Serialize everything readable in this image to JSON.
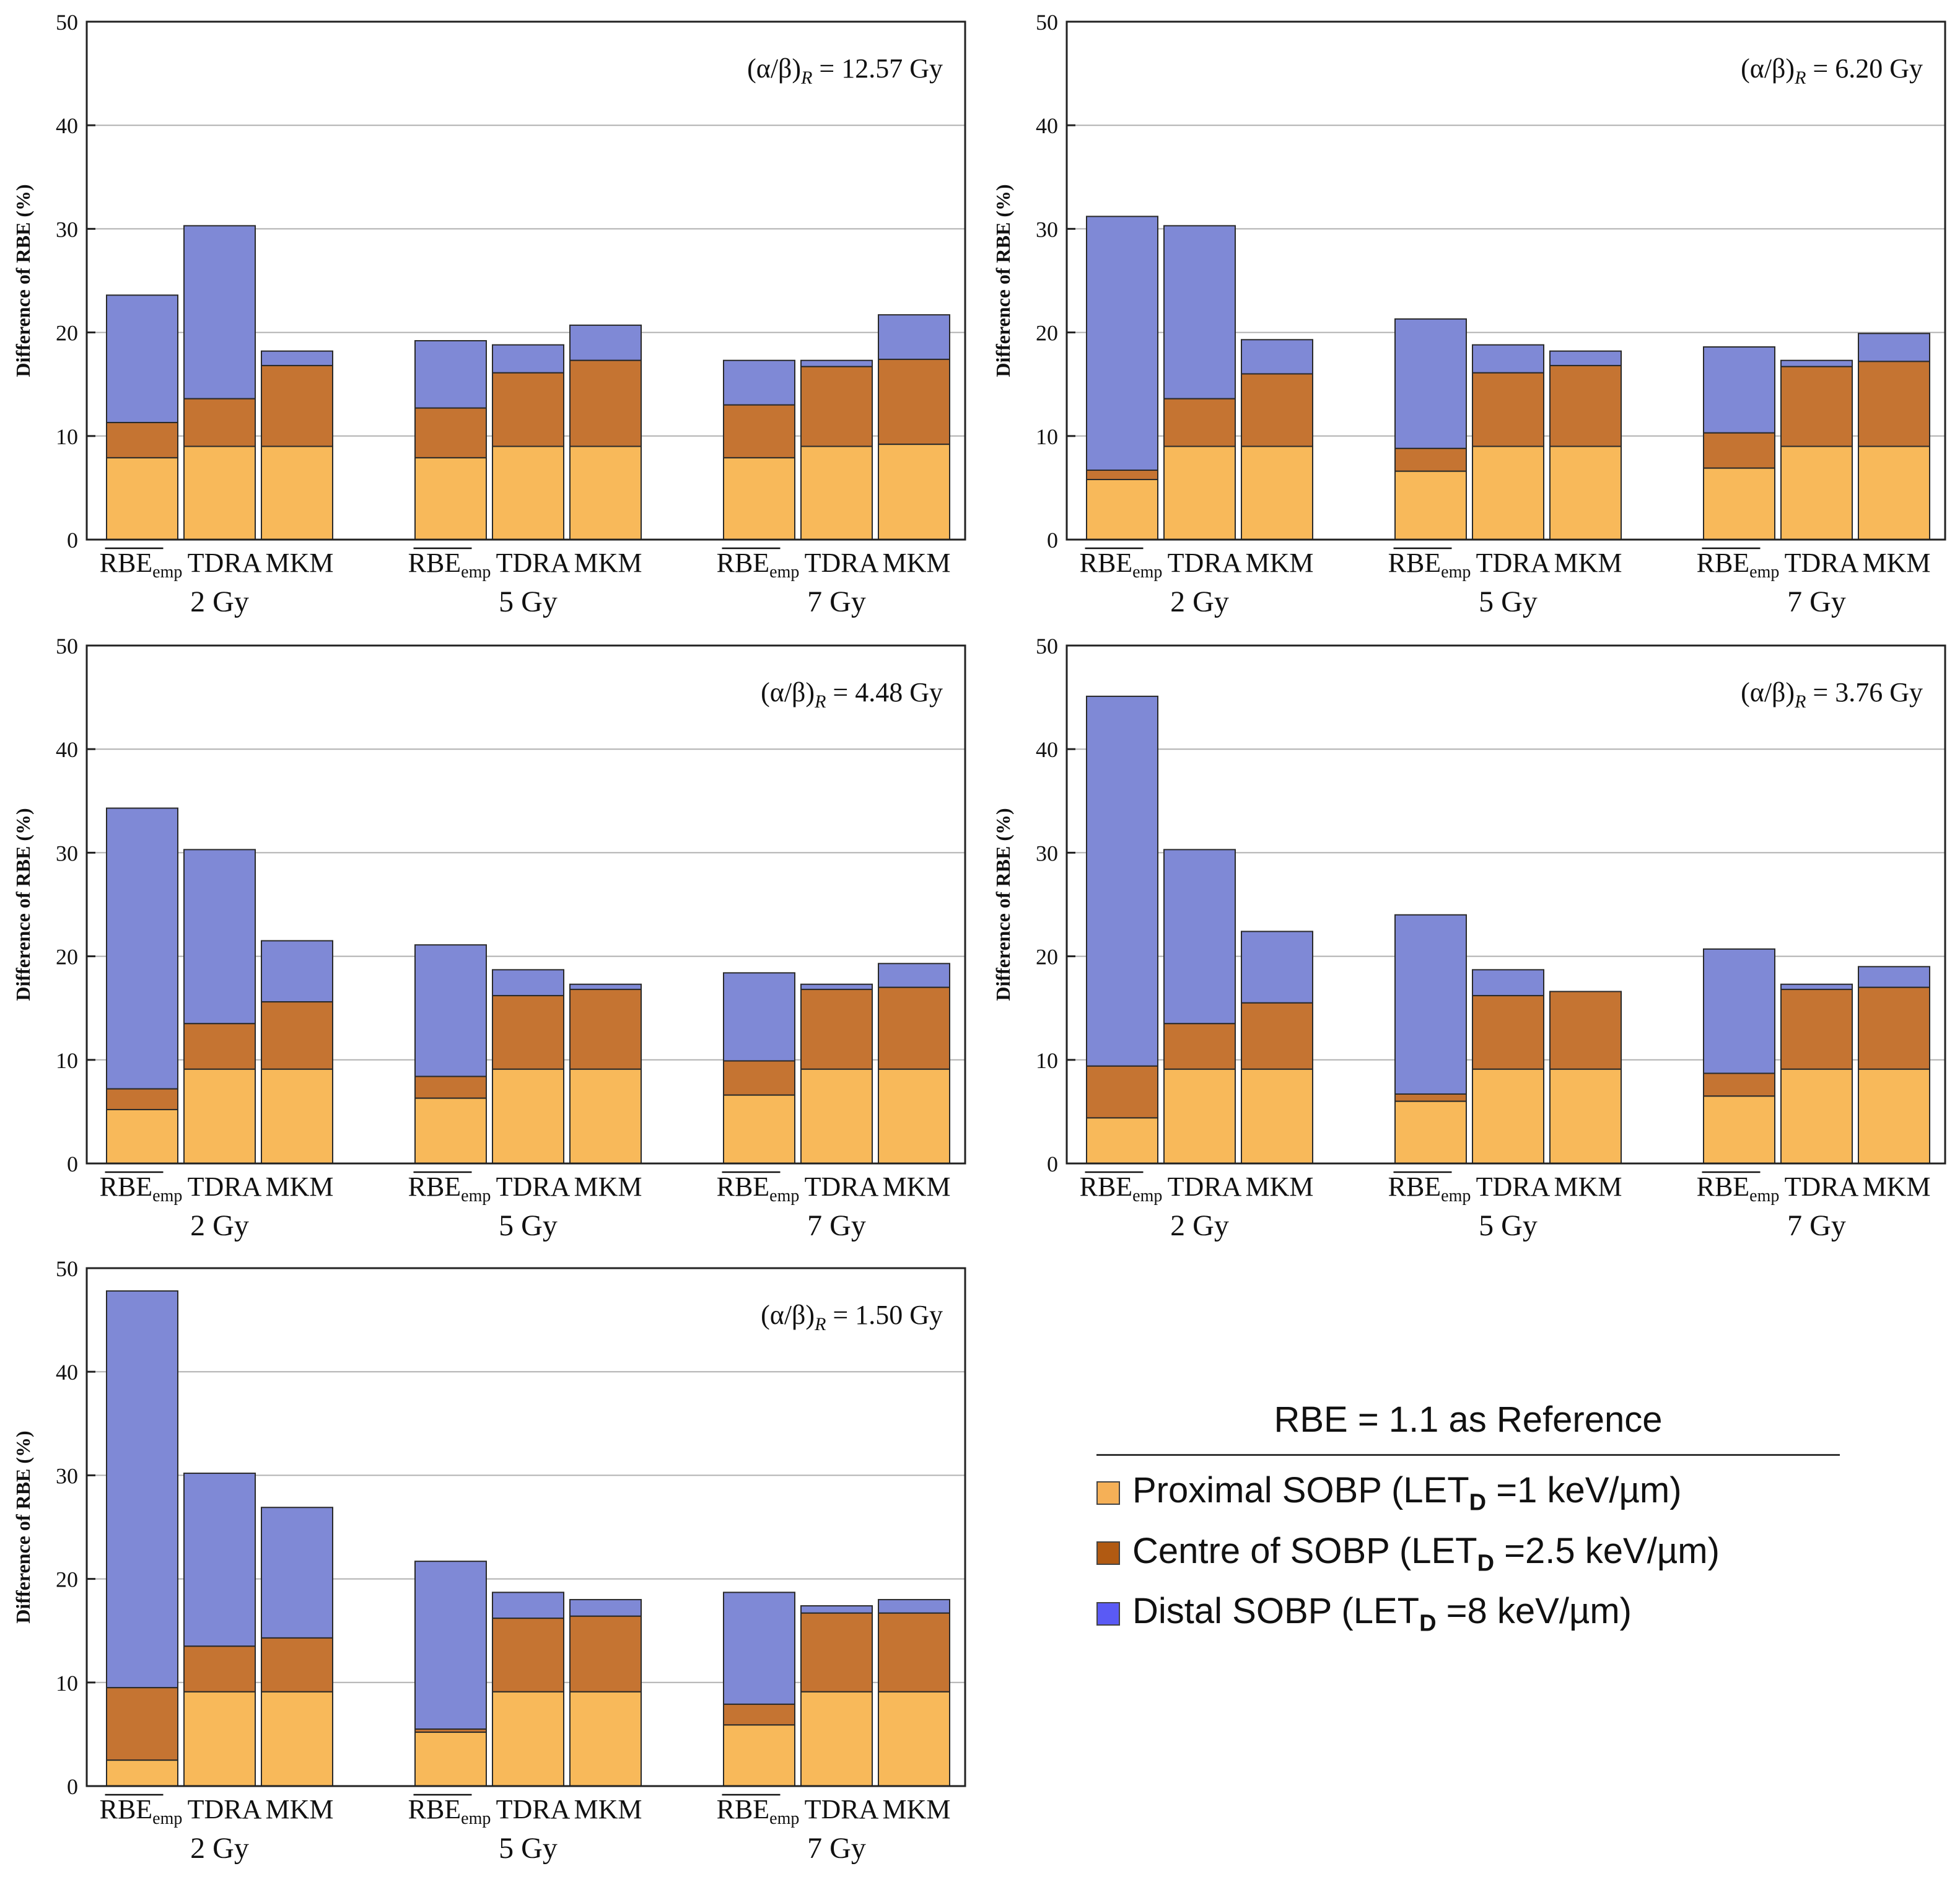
{
  "chart_data": {
    "type": "bar",
    "stacked": true,
    "ylabel": "Difference of RBE (%)",
    "ylim": [
      0,
      50
    ],
    "yticks": [
      0,
      10,
      20,
      30,
      40,
      50
    ],
    "grid": true,
    "group_labels": [
      "2 Gy",
      "5 Gy",
      "7 Gy"
    ],
    "bar_labels": [
      {
        "main": "RBE",
        "sub": "emp",
        "overline": true
      },
      {
        "main": "TDRA",
        "sub": "",
        "overline": false
      },
      {
        "main": "MKM",
        "sub": "",
        "overline": false
      }
    ],
    "series_names": [
      "Proximal SOBP (LET_D =1 keV/µm)",
      "Centre of SOBP (LET_D =2.5 keV/µm)",
      "Distal SOBP (LET_D =8 keV/µm)"
    ],
    "panels": [
      {
        "annotation": "(α/β)R = 12.57 Gy",
        "annotation_main": "(α/β)",
        "annotation_sub": "R",
        "annotation_rest": " = 12.57 Gy",
        "groups": [
          {
            "label": "2 Gy",
            "bars": [
              [
                7.9,
                11.3,
                23.6
              ],
              [
                9.0,
                13.6,
                30.3
              ],
              [
                9.0,
                16.8,
                18.2
              ]
            ]
          },
          {
            "label": "5 Gy",
            "bars": [
              [
                7.9,
                12.7,
                19.2
              ],
              [
                9.0,
                16.1,
                18.8
              ],
              [
                9.0,
                17.3,
                20.7
              ]
            ]
          },
          {
            "label": "7 Gy",
            "bars": [
              [
                7.9,
                13.0,
                17.3
              ],
              [
                9.0,
                16.7,
                17.3
              ],
              [
                9.2,
                17.4,
                21.7
              ]
            ]
          }
        ]
      },
      {
        "annotation": "(α/β)R = 6.20 Gy",
        "annotation_main": "(α/β)",
        "annotation_sub": "R",
        "annotation_rest": " = 6.20 Gy",
        "groups": [
          {
            "label": "2 Gy",
            "bars": [
              [
                5.8,
                6.7,
                31.2
              ],
              [
                9.0,
                13.6,
                30.3
              ],
              [
                9.0,
                16.0,
                19.3
              ]
            ]
          },
          {
            "label": "5 Gy",
            "bars": [
              [
                6.6,
                8.8,
                21.3
              ],
              [
                9.0,
                16.1,
                18.8
              ],
              [
                9.0,
                16.8,
                18.2
              ]
            ]
          },
          {
            "label": "7 Gy",
            "bars": [
              [
                6.9,
                10.3,
                18.6
              ],
              [
                9.0,
                16.7,
                17.3
              ],
              [
                9.0,
                17.2,
                19.9
              ]
            ]
          }
        ]
      },
      {
        "annotation": "(α/β)R = 4.48 Gy",
        "annotation_main": "(α/β)",
        "annotation_sub": "R",
        "annotation_rest": " = 4.48 Gy",
        "groups": [
          {
            "label": "2 Gy",
            "bars": [
              [
                5.2,
                7.2,
                34.3
              ],
              [
                9.1,
                13.5,
                30.3
              ],
              [
                9.1,
                15.6,
                21.5
              ]
            ]
          },
          {
            "label": "5 Gy",
            "bars": [
              [
                6.3,
                8.4,
                21.1
              ],
              [
                9.1,
                16.2,
                18.7
              ],
              [
                9.1,
                16.8,
                17.3
              ]
            ]
          },
          {
            "label": "7 Gy",
            "bars": [
              [
                6.6,
                9.9,
                18.4
              ],
              [
                9.1,
                16.8,
                17.3
              ],
              [
                9.1,
                17.0,
                19.3
              ]
            ]
          }
        ]
      },
      {
        "annotation": "(α/β)R = 3.76 Gy",
        "annotation_main": "(α/β)",
        "annotation_sub": "R",
        "annotation_rest": " = 3.76 Gy",
        "groups": [
          {
            "label": "2 Gy",
            "bars": [
              [
                4.4,
                9.4,
                45.1
              ],
              [
                9.1,
                13.5,
                30.3
              ],
              [
                9.1,
                15.5,
                22.4
              ]
            ]
          },
          {
            "label": "5 Gy",
            "bars": [
              [
                6.0,
                6.7,
                24.0
              ],
              [
                9.1,
                16.2,
                18.7
              ],
              [
                9.1,
                16.6,
                16.6
              ]
            ]
          },
          {
            "label": "7 Gy",
            "bars": [
              [
                6.5,
                8.7,
                20.7
              ],
              [
                9.1,
                16.8,
                17.3
              ],
              [
                9.1,
                17.0,
                19.0
              ]
            ]
          }
        ]
      },
      {
        "annotation": "(α/β)R = 1.50 Gy",
        "annotation_main": "(α/β)",
        "annotation_sub": "R",
        "annotation_rest": " = 1.50 Gy",
        "groups": [
          {
            "label": "2 Gy",
            "bars": [
              [
                2.5,
                9.5,
                47.8
              ],
              [
                9.1,
                13.5,
                30.2
              ],
              [
                9.1,
                14.3,
                26.9
              ]
            ]
          },
          {
            "label": "5 Gy",
            "bars": [
              [
                5.2,
                5.5,
                21.7
              ],
              [
                9.1,
                16.2,
                18.7
              ],
              [
                9.1,
                16.4,
                18.0
              ]
            ]
          },
          {
            "label": "7 Gy",
            "bars": [
              [
                5.9,
                7.9,
                18.7
              ],
              [
                9.1,
                16.7,
                17.4
              ],
              [
                9.1,
                16.7,
                18.0
              ]
            ]
          }
        ]
      }
    ]
  },
  "legend": {
    "title": "RBE = 1.1 as Reference",
    "items": [
      {
        "before": "Proximal SOBP (LET",
        "sub": "D",
        "after": " =1 keV/µm)",
        "color": "#f5b057"
      },
      {
        "before": "Centre of SOBP (LET",
        "sub": "D",
        "after": " =2.5 keV/µm)",
        "color": "#b15a12"
      },
      {
        "before": "Distal SOBP (LET",
        "sub": "D",
        "after": " =8 keV/µm)",
        "color": "#5a5af5"
      }
    ]
  },
  "colors": {
    "proximal": "#f8b95a",
    "centre": "#c57432",
    "distal": "#7f89d6",
    "grid": "#b0b0b0",
    "axis": "#222222"
  }
}
